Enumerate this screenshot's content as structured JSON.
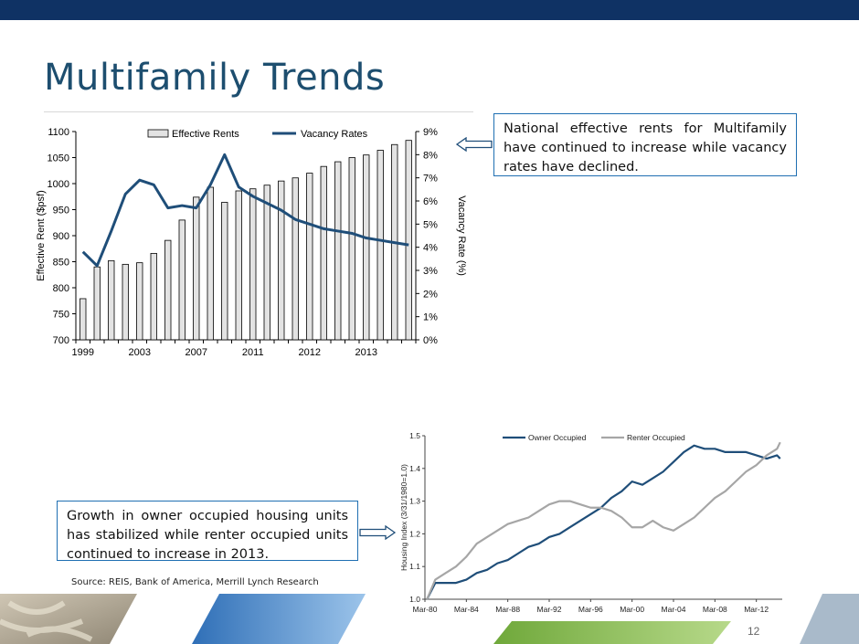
{
  "slide": {
    "title": "Multifamily Trends",
    "page_number": "12",
    "source": "Source: REIS, Bank of America, Merrill Lynch Research",
    "callout_top": "National effective rents for Multifamily have continued to increase while vacancy rates have declined.",
    "callout_bottom": "Growth in owner occupied housing units has stabilized while renter occupied units continued to increase in 2013."
  },
  "colors": {
    "header_bar": "#0f3264",
    "title": "#1d4e6f",
    "vacancy_line": "#1f4e79",
    "owner_line": "#1f4e79",
    "renter_line": "#a6a6a6",
    "bar_fill": "#e3e3e3",
    "callout_border": "#1f6fb2"
  },
  "chart_data": [
    {
      "type": "bar+line",
      "title": "",
      "legend": [
        "Effective Rents",
        "Vacancy Rates"
      ],
      "ylabel": "Effective Rent ($psf)",
      "y2label": "Vacancy Rate (%)",
      "ylim": [
        700,
        1100
      ],
      "y_ticks": [
        "700",
        "750",
        "800",
        "850",
        "900",
        "950",
        "1000",
        "1050",
        "1100"
      ],
      "y2lim": [
        0,
        9
      ],
      "y2_ticks": [
        "0%",
        "1%",
        "2%",
        "3%",
        "4%",
        "5%",
        "6%",
        "7%",
        "8%",
        "9%"
      ],
      "x_tick_labels": [
        {
          "index": 0,
          "label": "1999"
        },
        {
          "index": 4,
          "label": "2003"
        },
        {
          "index": 8,
          "label": "2007"
        },
        {
          "index": 12,
          "label": "2011"
        },
        {
          "index": 16,
          "label": "2012"
        },
        {
          "index": 20,
          "label": "2013"
        }
      ],
      "series": [
        {
          "name": "Effective Rents",
          "kind": "bar",
          "values": [
            779,
            840,
            852,
            845,
            848,
            866,
            891,
            930,
            974,
            993,
            964,
            986,
            990,
            997,
            1005,
            1011,
            1020,
            1033,
            1042,
            1050,
            1055,
            1064,
            1075,
            1083
          ]
        },
        {
          "name": "Vacancy Rates",
          "kind": "line",
          "values": [
            3.8,
            3.2,
            4.7,
            6.3,
            6.9,
            6.7,
            5.7,
            5.8,
            5.7,
            6.7,
            8.0,
            6.6,
            6.2,
            5.9,
            5.6,
            5.2,
            5.0,
            4.8,
            4.7,
            4.6,
            4.4,
            4.3,
            4.2,
            4.1
          ]
        }
      ]
    },
    {
      "type": "line",
      "title": "",
      "legend": [
        "Owner Occupied",
        "Renter Occupied"
      ],
      "ylabel": "Housing Index (3/31/1980=1.0)",
      "ylim": [
        1.0,
        1.5
      ],
      "y_ticks": [
        "1.0",
        "1.1",
        "1.2",
        "1.3",
        "1.4",
        "1.5"
      ],
      "x_ticks": [
        "Mar-80",
        "Mar-84",
        "Mar-88",
        "Mar-92",
        "Mar-96",
        "Mar-00",
        "Mar-04",
        "Mar-08",
        "Mar-12"
      ],
      "x_range": [
        1980,
        2014.5
      ],
      "series": [
        {
          "name": "Owner Occupied",
          "x": [
            1980.2,
            1981,
            1982,
            1983,
            1984,
            1985,
            1986,
            1987,
            1988,
            1989,
            1990,
            1991,
            1992,
            1993,
            1994,
            1995,
            1996,
            1997,
            1998,
            1999,
            2000,
            2001,
            2002,
            2003,
            2004,
            2005,
            2006,
            2007,
            2008,
            2009,
            2010,
            2011,
            2012,
            2013,
            2014,
            2014.3
          ],
          "y": [
            1.0,
            1.05,
            1.05,
            1.05,
            1.06,
            1.08,
            1.09,
            1.11,
            1.12,
            1.14,
            1.16,
            1.17,
            1.19,
            1.2,
            1.22,
            1.24,
            1.26,
            1.28,
            1.31,
            1.33,
            1.36,
            1.35,
            1.37,
            1.39,
            1.42,
            1.45,
            1.47,
            1.46,
            1.46,
            1.45,
            1.45,
            1.45,
            1.44,
            1.43,
            1.44,
            1.43
          ]
        },
        {
          "name": "Renter Occupied",
          "x": [
            1980.2,
            1981,
            1982,
            1983,
            1984,
            1985,
            1986,
            1987,
            1988,
            1989,
            1990,
            1991,
            1992,
            1993,
            1994,
            1995,
            1996,
            1997,
            1998,
            1999,
            2000,
            2001,
            2002,
            2003,
            2004,
            2005,
            2006,
            2007,
            2008,
            2009,
            2010,
            2011,
            2012,
            2013,
            2014,
            2014.3
          ],
          "y": [
            1.0,
            1.06,
            1.08,
            1.1,
            1.13,
            1.17,
            1.19,
            1.21,
            1.23,
            1.24,
            1.25,
            1.27,
            1.29,
            1.3,
            1.3,
            1.29,
            1.28,
            1.28,
            1.27,
            1.25,
            1.22,
            1.22,
            1.24,
            1.22,
            1.21,
            1.23,
            1.25,
            1.28,
            1.31,
            1.33,
            1.36,
            1.39,
            1.41,
            1.44,
            1.46,
            1.48
          ]
        }
      ]
    }
  ]
}
